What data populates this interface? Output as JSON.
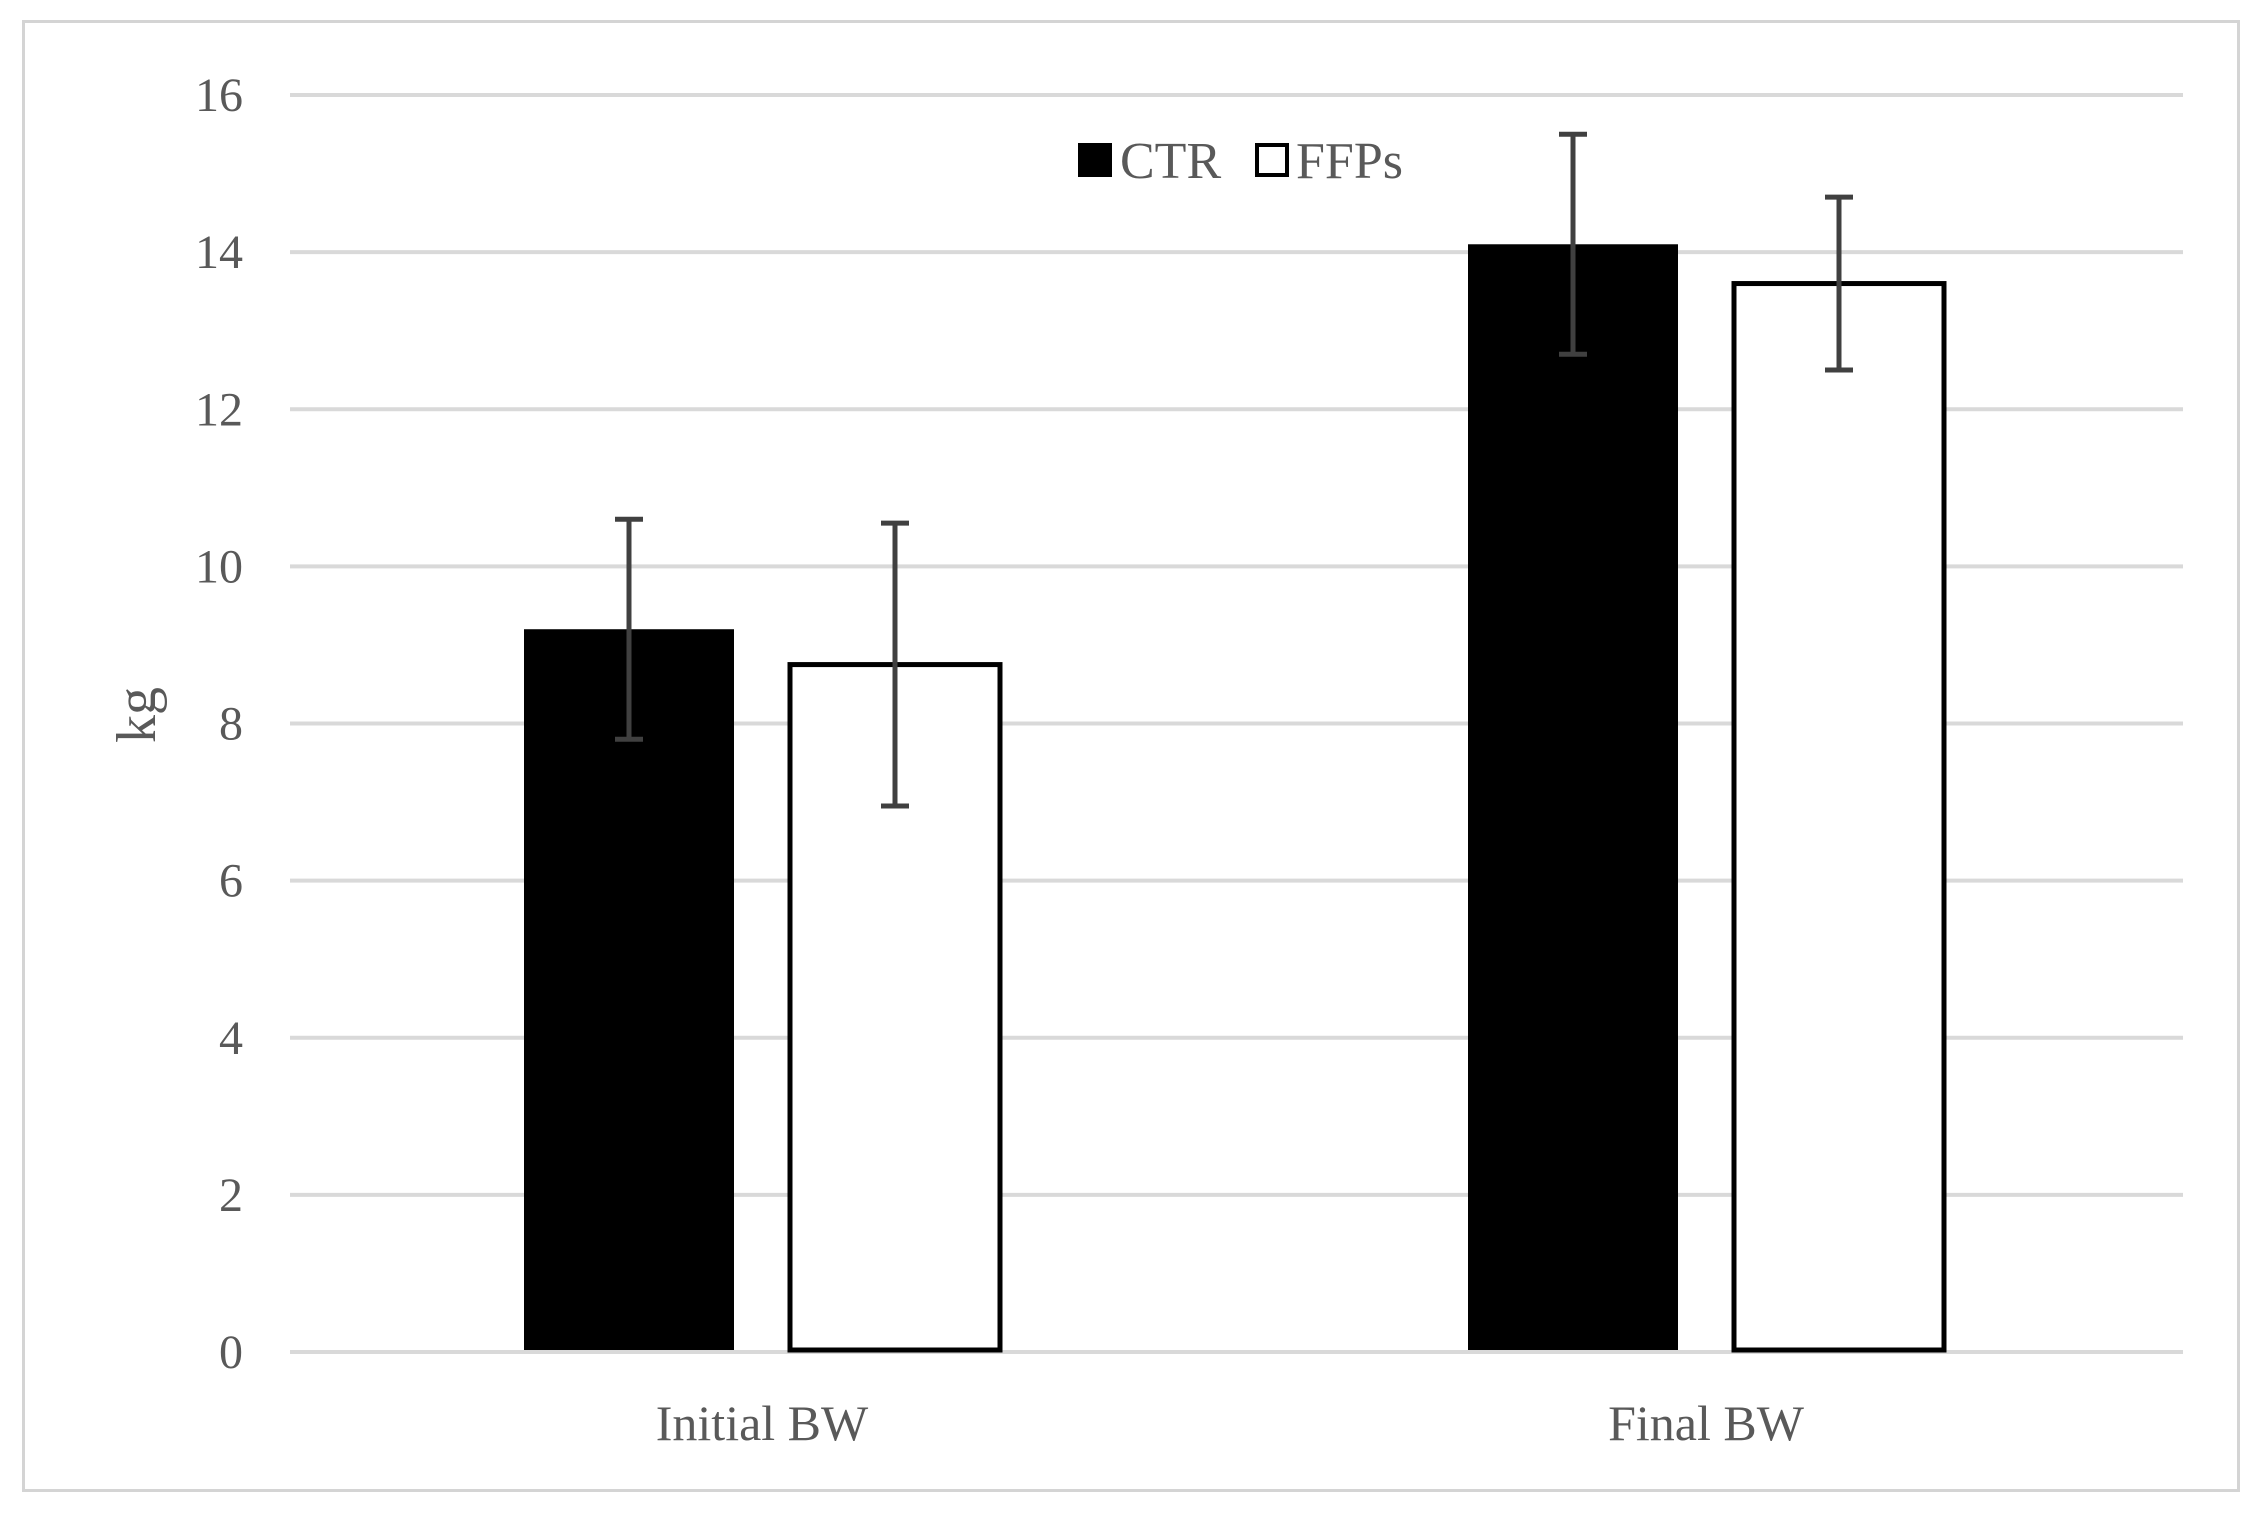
{
  "chart_data": {
    "type": "bar",
    "title": "",
    "xlabel": "",
    "ylabel": "kg",
    "ylim": [
      0,
      16
    ],
    "yticks": [
      0,
      2,
      4,
      6,
      8,
      10,
      12,
      14,
      16
    ],
    "grid": true,
    "legend_position": "top-center",
    "categories": [
      "Initial BW",
      "Final BW"
    ],
    "series": [
      {
        "name": "CTR",
        "values": [
          9.2,
          14.1
        ],
        "errors": [
          1.4,
          1.4
        ],
        "color": "#000000"
      },
      {
        "name": "FFPs",
        "values": [
          8.75,
          13.6
        ],
        "errors": [
          1.8,
          1.1
        ],
        "color": "#ffffff"
      }
    ]
  },
  "colors": {
    "grid": "#d9d9d9",
    "text": "#595959",
    "error_bar": "#404040",
    "frame_border": "#d4d4d4"
  }
}
